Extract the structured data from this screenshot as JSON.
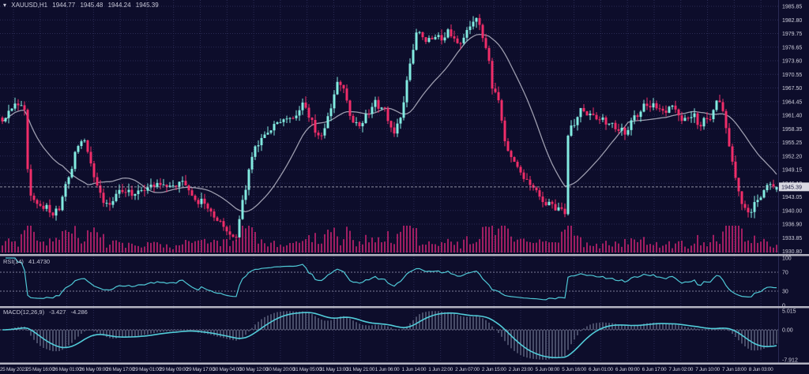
{
  "window": {
    "marker": "▾",
    "symbol": "XAUUSD,H1",
    "ohlc": {
      "open": "1944.77",
      "high": "1945.48",
      "low": "1944.24",
      "close": "1945.39"
    }
  },
  "chart_data": {
    "type": "candlestick",
    "symbol": "XAUUSD",
    "timeframe": "H1",
    "title": "XAUUSD,H1 1944.77 1945.48 1944.24 1945.39",
    "ohlc_display": {
      "open": 1944.77,
      "high": 1945.48,
      "low": 1944.24,
      "close": 1945.39
    },
    "current_price": 1945.39,
    "price_axis": {
      "ticks": [
        "1985.85",
        "1982.80",
        "1979.75",
        "1976.65",
        "1973.60",
        "1970.55",
        "1967.50",
        "1964.45",
        "1961.40",
        "1958.35",
        "1955.25",
        "1952.20",
        "1949.15",
        "1946.10",
        "1943.05",
        "1940.00",
        "1936.90",
        "1933.85",
        "1930.80"
      ],
      "top_value": 1985.85,
      "tick_step": 3.05
    },
    "time_axis": {
      "labels": [
        "25 May 2023",
        "25 May 16:00",
        "26 May 01:00",
        "26 May 09:00",
        "26 May 17:00",
        "29 May 01:00",
        "29 May 09:00",
        "29 May 17:00",
        "30 May 04:00",
        "30 May 12:00",
        "30 May 20:00",
        "31 May 05:00",
        "31 May 13:00",
        "31 May 21:00",
        "1 Jun 06:00",
        "1 Jun 14:00",
        "1 Jun 22:00",
        "2 Jun 07:00",
        "2 Jun 15:00",
        "2 Jun 23:00",
        "5 Jun 08:00",
        "5 Jun 16:00",
        "6 Jun 01:00",
        "6 Jun 09:00",
        "6 Jun 17:00",
        "7 Jun 02:00",
        "7 Jun 10:00",
        "7 Jun 18:00",
        "8 Jun 03:00"
      ]
    },
    "price_path_anchors": [
      [
        0.002,
        1960.6
      ],
      [
        0.014,
        1963.2
      ],
      [
        0.024,
        1964.3
      ],
      [
        0.03,
        1962.0
      ],
      [
        0.034,
        1943.6
      ],
      [
        0.046,
        1941.8
      ],
      [
        0.059,
        1940.1
      ],
      [
        0.071,
        1939.5
      ],
      [
        0.083,
        1946.3
      ],
      [
        0.097,
        1954.3
      ],
      [
        0.106,
        1956.1
      ],
      [
        0.122,
        1945.4
      ],
      [
        0.138,
        1940.6
      ],
      [
        0.154,
        1945.4
      ],
      [
        0.171,
        1943.6
      ],
      [
        0.187,
        1944.5
      ],
      [
        0.203,
        1946.3
      ],
      [
        0.219,
        1944.9
      ],
      [
        0.231,
        1946.8
      ],
      [
        0.248,
        1942.4
      ],
      [
        0.262,
        1941.8
      ],
      [
        0.276,
        1938.3
      ],
      [
        0.292,
        1934.7
      ],
      [
        0.3,
        1932.9
      ],
      [
        0.311,
        1942.7
      ],
      [
        0.325,
        1954.3
      ],
      [
        0.341,
        1957.9
      ],
      [
        0.357,
        1959.7
      ],
      [
        0.374,
        1960.6
      ],
      [
        0.39,
        1964.1
      ],
      [
        0.402,
        1958.8
      ],
      [
        0.41,
        1956.1
      ],
      [
        0.424,
        1962.4
      ],
      [
        0.434,
        1970.4
      ],
      [
        0.443,
        1965.9
      ],
      [
        0.455,
        1958.8
      ],
      [
        0.467,
        1960.6
      ],
      [
        0.479,
        1964.1
      ],
      [
        0.491,
        1963.2
      ],
      [
        0.506,
        1957.0
      ],
      [
        0.516,
        1962.4
      ],
      [
        0.526,
        1973.0
      ],
      [
        0.536,
        1981.0
      ],
      [
        0.546,
        1977.5
      ],
      [
        0.556,
        1979.3
      ],
      [
        0.566,
        1978.4
      ],
      [
        0.577,
        1980.1
      ],
      [
        0.587,
        1977.5
      ],
      [
        0.599,
        1979.3
      ],
      [
        0.609,
        1983.7
      ],
      [
        0.617,
        1981.0
      ],
      [
        0.625,
        1976.6
      ],
      [
        0.633,
        1967.7
      ],
      [
        0.642,
        1964.1
      ],
      [
        0.65,
        1954.3
      ],
      [
        0.658,
        1951.6
      ],
      [
        0.67,
        1948.9
      ],
      [
        0.682,
        1945.4
      ],
      [
        0.694,
        1943.6
      ],
      [
        0.707,
        1940.9
      ],
      [
        0.719,
        1940.1
      ],
      [
        0.727,
        1939.6
      ],
      [
        0.731,
        1958.0
      ],
      [
        0.747,
        1962.4
      ],
      [
        0.759,
        1961.5
      ],
      [
        0.772,
        1960.6
      ],
      [
        0.784,
        1959.7
      ],
      [
        0.796,
        1958.8
      ],
      [
        0.804,
        1957.0
      ],
      [
        0.816,
        1960.6
      ],
      [
        0.828,
        1963.2
      ],
      [
        0.841,
        1964.1
      ],
      [
        0.853,
        1962.4
      ],
      [
        0.865,
        1963.2
      ],
      [
        0.877,
        1960.6
      ],
      [
        0.889,
        1961.5
      ],
      [
        0.901,
        1959.7
      ],
      [
        0.914,
        1960.6
      ],
      [
        0.926,
        1965.9
      ],
      [
        0.934,
        1958.8
      ],
      [
        0.942,
        1951.6
      ],
      [
        0.95,
        1944.5
      ],
      [
        0.959,
        1940.1
      ],
      [
        0.967,
        1939.2
      ],
      [
        0.975,
        1942.7
      ],
      [
        0.983,
        1944.5
      ],
      [
        0.991,
        1945.9
      ],
      [
        1.0,
        1945.4
      ]
    ],
    "indicators": {
      "ma": {
        "name": "Moving Average",
        "period": 20
      },
      "rsi": {
        "label": "RSI(14)",
        "period": 14,
        "value": 41.473,
        "value_text": "41.4730",
        "levels": [
          70,
          30
        ],
        "axis_ticks": [
          "100",
          "70",
          "30",
          "0"
        ],
        "range": [
          0,
          100
        ]
      },
      "macd": {
        "label": "MACD(12,26,9)",
        "params": "12,26,9",
        "main_value": -3.427,
        "signal_value": -4.286,
        "main_value_text": "-3.427",
        "signal_value_text": "-4.286",
        "axis_ticks": [
          "5.015",
          "0.00",
          "-7.912"
        ],
        "range": [
          -7.912,
          5.015
        ]
      }
    }
  },
  "colors": {
    "background": "#0d0d2b",
    "grid": "#2b2b55",
    "bull": "#82ebe1",
    "bear": "#f02d69",
    "ma": "#9c9cae",
    "volume": "#a01e62",
    "rsi_line": "#4fc8d6",
    "macd_signal": "#52ccd9",
    "macd_hist": "#98a0bc",
    "separator": "#b4b4c2",
    "axis_text": "#cfcfdc",
    "label_text": "#c8c8d8",
    "level_line": "#7d7d98",
    "price_line": "#b9b9c8",
    "price_tag_bg": "#d9d9e2",
    "price_tag_text": "#16163c"
  }
}
